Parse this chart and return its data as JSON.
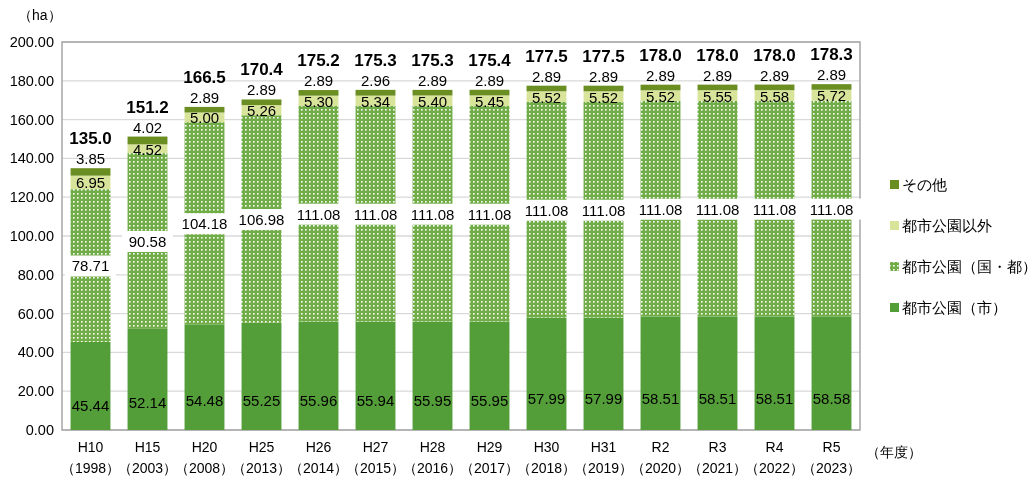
{
  "chart_data": {
    "type": "bar",
    "stacked": true,
    "ylabel": "（ha）",
    "xlabel": "（年度）",
    "categories": [
      "H10（1998）",
      "H15（2003）",
      "H20（2008）",
      "H25（2013）",
      "H26（2014）",
      "H27（2015）",
      "H28（2016）",
      "H29（2017）",
      "H30（2018）",
      "H31（2019）",
      "R2（2020）",
      "R3（2021）",
      "R4（2022）",
      "R5（2023）"
    ],
    "series": [
      {
        "name": "都市公園（市）",
        "color": "#549e39",
        "values": [
          45.44,
          52.14,
          54.48,
          55.25,
          55.96,
          55.94,
          55.95,
          55.95,
          57.99,
          57.99,
          58.51,
          58.51,
          58.51,
          58.58
        ],
        "value_labels": [
          "45.44",
          "52.14",
          "54.48",
          "55.25",
          "55.96",
          "55.94",
          "55.95",
          "55.95",
          "57.99",
          "57.99",
          "58.51",
          "58.51",
          "58.51",
          "58.58"
        ]
      },
      {
        "name": "都市公園（国・都）",
        "color": "#70ad47",
        "values": [
          78.71,
          90.58,
          104.18,
          106.98,
          111.08,
          111.08,
          111.08,
          111.08,
          111.08,
          111.08,
          111.08,
          111.08,
          111.08,
          111.08
        ],
        "value_labels": [
          "78.71",
          "90.58",
          "104.18",
          "106.98",
          "111.08",
          "111.08",
          "111.08",
          "111.08",
          "111.08",
          "111.08",
          "111.08",
          "111.08",
          "111.08",
          "111.08"
        ]
      },
      {
        "name": "都市公園以外",
        "color": "#d9e49b",
        "values": [
          6.95,
          4.52,
          5.0,
          5.26,
          5.3,
          5.34,
          5.4,
          5.45,
          5.52,
          5.52,
          5.52,
          5.55,
          5.58,
          5.72
        ],
        "value_labels": [
          "6.95",
          "4.52",
          "5.00",
          "5.26",
          "5.30",
          "5.34",
          "5.40",
          "5.45",
          "5.52",
          "5.52",
          "5.52",
          "5.55",
          "5.58",
          "5.72"
        ]
      },
      {
        "name": "その他",
        "color": "#6b8e23",
        "values": [
          3.85,
          4.02,
          2.89,
          2.89,
          2.89,
          2.96,
          2.89,
          2.89,
          2.89,
          2.89,
          2.89,
          2.89,
          2.89,
          2.89
        ],
        "value_labels": [
          "3.85",
          "4.02",
          "2.89",
          "2.89",
          "2.89",
          "2.96",
          "2.89",
          "2.89",
          "2.89",
          "2.89",
          "2.89",
          "2.89",
          "2.89",
          "2.89"
        ]
      }
    ],
    "totals": [
      "135.0",
      "151.2",
      "166.5",
      "170.4",
      "175.2",
      "175.3",
      "175.3",
      "175.4",
      "177.5",
      "177.5",
      "178.0",
      "178.0",
      "178.0",
      "178.3"
    ],
    "ylim": [
      0,
      200
    ],
    "yticks": [
      {
        "value": 0,
        "label": "0.00"
      },
      {
        "value": 20,
        "label": "20.00"
      },
      {
        "value": 40,
        "label": "40.00"
      },
      {
        "value": 60,
        "label": "60.00"
      },
      {
        "value": 80,
        "label": "80.00"
      },
      {
        "value": 100,
        "label": "100.00"
      },
      {
        "value": 120,
        "label": "120.00"
      },
      {
        "value": 140,
        "label": "140.00"
      },
      {
        "value": 160,
        "label": "160.00"
      },
      {
        "value": 180,
        "label": "180.00"
      },
      {
        "value": 200,
        "label": "200.00"
      }
    ],
    "grid": "y",
    "legend": "right"
  }
}
